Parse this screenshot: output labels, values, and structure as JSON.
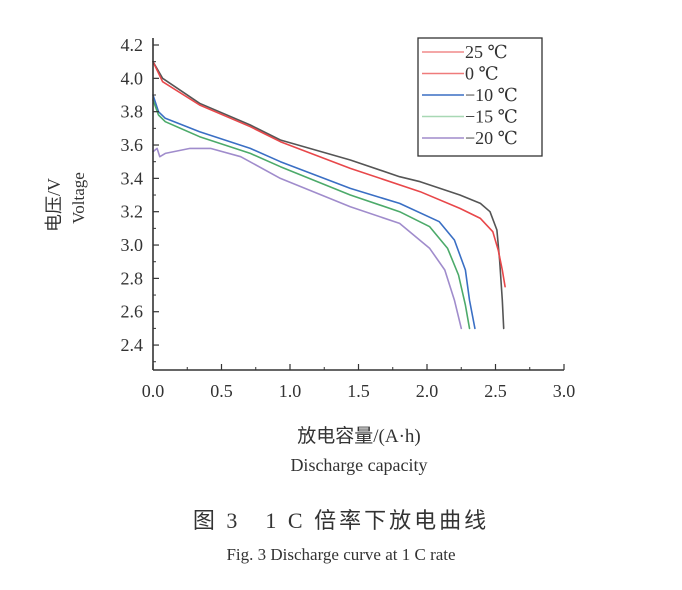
{
  "chart_data": {
    "type": "line",
    "title": "",
    "xlabel": "放电容量/(A·h)",
    "xlabel_en": "Discharge capacity",
    "ylabel": "电压/V",
    "ylabel_en": "Voltage",
    "xlim": [
      0.0,
      3.0
    ],
    "ylim": [
      2.26,
      4.25
    ],
    "xticks": [
      0.0,
      0.5,
      1.0,
      1.5,
      2.0,
      2.5,
      3.0
    ],
    "xtick_labels": [
      "0.0",
      "0.5",
      "1.0",
      "1.5",
      "2.0",
      "2.5",
      "3.0"
    ],
    "yticks": [
      2.4,
      2.6,
      2.8,
      3.0,
      3.2,
      3.4,
      3.6,
      3.8,
      4.0,
      4.2
    ],
    "ytick_labels": [
      "2.4",
      "2.6",
      "2.8",
      "3.0",
      "3.2",
      "3.4",
      "3.6",
      "3.8",
      "4.0",
      "4.2"
    ],
    "grid": false,
    "legend_position": "upper right",
    "series": [
      {
        "name": "25 ℃",
        "color": "#555555",
        "legend_color": "#f08a8a",
        "x": [
          0,
          0.07,
          0.34,
          0.71,
          0.93,
          1.44,
          1.8,
          1.95,
          2.24,
          2.39,
          2.46,
          2.51,
          2.53,
          2.55,
          2.56
        ],
        "y": [
          4.1,
          4.0,
          3.85,
          3.72,
          3.63,
          3.51,
          3.41,
          3.38,
          3.3,
          3.25,
          3.2,
          3.09,
          2.91,
          2.67,
          2.5
        ]
      },
      {
        "name": "0 ℃",
        "color": "#e8474a",
        "legend_color": "#ef7b7b",
        "x": [
          0,
          0.07,
          0.34,
          0.71,
          0.93,
          1.44,
          1.95,
          2.24,
          2.39,
          2.48,
          2.52,
          2.55,
          2.57
        ],
        "y": [
          4.1,
          3.98,
          3.84,
          3.71,
          3.62,
          3.46,
          3.32,
          3.22,
          3.16,
          3.08,
          2.97,
          2.85,
          2.75
        ]
      },
      {
        "name": "−10 ℃",
        "color": "#3a6fc4",
        "legend_color": "#3a6fc4",
        "x": [
          0,
          0.04,
          0.09,
          0.34,
          0.71,
          0.93,
          1.44,
          1.8,
          2.09,
          2.2,
          2.28,
          2.31,
          2.35
        ],
        "y": [
          3.9,
          3.8,
          3.76,
          3.68,
          3.58,
          3.5,
          3.34,
          3.25,
          3.14,
          3.03,
          2.85,
          2.67,
          2.5
        ]
      },
      {
        "name": "−15 ℃",
        "color": "#4caa6a",
        "legend_color": "#a8d8b4",
        "x": [
          0,
          0.04,
          0.09,
          0.34,
          0.71,
          0.93,
          1.44,
          1.8,
          2.02,
          2.15,
          2.23,
          2.28,
          2.31
        ],
        "y": [
          3.87,
          3.78,
          3.74,
          3.65,
          3.55,
          3.47,
          3.3,
          3.2,
          3.11,
          2.98,
          2.82,
          2.64,
          2.5
        ]
      },
      {
        "name": "−20 ℃",
        "color": "#a08ccc",
        "legend_color": "#a08ccc",
        "x": [
          0,
          0.03,
          0.05,
          0.09,
          0.27,
          0.42,
          0.64,
          0.93,
          1.44,
          1.8,
          2.02,
          2.13,
          2.2,
          2.25
        ],
        "y": [
          3.56,
          3.58,
          3.53,
          3.55,
          3.58,
          3.58,
          3.53,
          3.4,
          3.23,
          3.13,
          2.98,
          2.85,
          2.67,
          2.5
        ]
      }
    ]
  },
  "caption": {
    "cn": "图 3　1 C 倍率下放电曲线",
    "en": "Fig. 3 Discharge curve at 1 C rate"
  }
}
